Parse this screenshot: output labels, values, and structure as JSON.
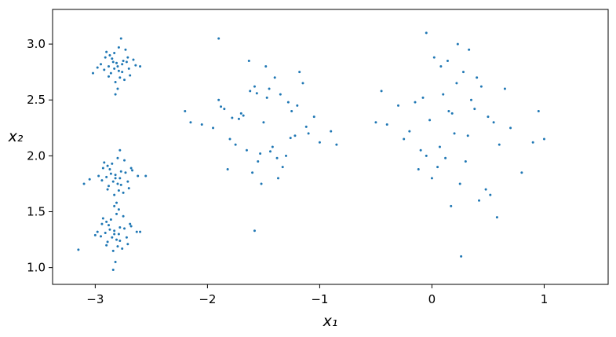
{
  "chart_data": {
    "type": "scatter",
    "color": "#1f77b4",
    "x_label": "x₁",
    "y_label": "x₂",
    "xlim": [
      -3.38,
      1.57
    ],
    "ylim": [
      0.85,
      3.31
    ],
    "xticks": [
      {
        "value": -3,
        "label": "−3"
      },
      {
        "value": -2,
        "label": "−2"
      },
      {
        "value": -1,
        "label": "−1"
      },
      0,
      1
    ],
    "yticks": [
      {
        "value": 1,
        "label": "1.0"
      },
      1.5,
      {
        "value": 2,
        "label": "2.0"
      },
      2.5,
      {
        "value": 3,
        "label": "3.0"
      }
    ],
    "x": [
      -2.8,
      -2.75,
      -2.86,
      -2.91,
      -2.7,
      -2.83,
      -2.78,
      -2.95,
      -2.66,
      -2.82,
      -2.88,
      -2.73,
      -2.79,
      -2.84,
      -2.69,
      -2.92,
      -2.77,
      -2.81,
      -2.87,
      -2.74,
      -2.98,
      -2.64,
      -2.8,
      -2.85,
      -2.76,
      -2.9,
      -2.72,
      -2.83,
      -2.79,
      -2.88,
      -2.71,
      -2.82,
      -2.76,
      -3.02,
      -2.6,
      -2.82,
      -2.77,
      -2.88,
      -2.93,
      -2.71,
      -2.85,
      -2.79,
      -2.97,
      -2.67,
      -2.83,
      -2.9,
      -2.74,
      -2.8,
      -2.86,
      -2.7,
      -2.94,
      -2.78,
      -2.82,
      -2.89,
      -2.75,
      -3.05,
      -2.62,
      -2.81,
      -2.87,
      -2.77,
      -2.92,
      -2.73,
      -2.84,
      -2.8,
      -2.89,
      -2.68,
      -2.83,
      -2.55,
      -3.1,
      -2.78,
      -2.83,
      -2.78,
      -2.89,
      -2.94,
      -2.72,
      -2.86,
      -2.8,
      -2.98,
      -2.68,
      -2.84,
      -2.91,
      -2.75,
      -2.81,
      -2.87,
      -2.71,
      -2.95,
      -2.79,
      -2.83,
      -2.9,
      -2.76,
      -3.0,
      -2.63,
      -2.82,
      -2.88,
      -2.78,
      -2.93,
      -2.74,
      -2.85,
      -2.81,
      -2.9,
      -2.69,
      -2.84,
      -2.6,
      -3.15,
      -2.79,
      -1.5,
      -1.2,
      -1.8,
      -1.35,
      -1.65,
      -1.05,
      -1.95,
      -1.45,
      -1.55,
      -1.25,
      -1.75,
      -1.4,
      -1.6,
      -1.1,
      -1.9,
      -1.3,
      -1.7,
      -1.15,
      -2.05,
      -1.0,
      -1.48,
      -1.52,
      -1.85,
      -1.22,
      -1.62,
      -1.38,
      -1.72,
      -1.28,
      -2.15,
      -0.9,
      -1.42,
      -1.58,
      -1.33,
      -1.68,
      -1.18,
      -1.88,
      -1.47,
      -1.53,
      -2.2,
      -0.85,
      -1.12,
      -1.78,
      -1.37,
      -1.63,
      -1.26,
      -1.82,
      -1.56,
      -1.44,
      -1.9,
      -1.58,
      0.2,
      0.5,
      -0.1,
      0.35,
      0.05,
      0.65,
      -0.25,
      0.15,
      0.25,
      0.55,
      -0.05,
      0.4,
      0.0,
      0.7,
      -0.3,
      0.3,
      0.1,
      0.6,
      -0.4,
      0.8,
      0.18,
      0.22,
      -0.15,
      0.48,
      0.08,
      0.32,
      -0.02,
      0.42,
      -0.45,
      0.9,
      0.28,
      0.12,
      0.38,
      0.02,
      0.52,
      -0.2,
      0.23,
      0.17,
      -0.5,
      1.0,
      0.58,
      -0.08,
      0.33,
      0.07,
      0.44,
      -0.12,
      0.14,
      0.26,
      0.95,
      -0.05
    ],
    "y": [
      2.8,
      2.85,
      2.74,
      2.88,
      2.78,
      2.92,
      2.7,
      2.82,
      2.86,
      2.66,
      2.8,
      2.95,
      2.76,
      2.84,
      2.72,
      2.77,
      3.05,
      2.83,
      2.9,
      2.68,
      2.79,
      2.81,
      2.6,
      2.87,
      2.75,
      2.93,
      2.84,
      2.78,
      2.97,
      2.71,
      2.88,
      2.55,
      2.82,
      2.74,
      2.8,
      1.8,
      1.86,
      1.73,
      1.89,
      1.77,
      1.93,
      1.69,
      1.82,
      1.87,
      1.65,
      1.81,
      1.96,
      1.75,
      1.84,
      1.71,
      1.78,
      2.05,
      1.83,
      1.91,
      1.67,
      1.79,
      1.82,
      1.58,
      1.88,
      1.74,
      1.94,
      1.85,
      1.77,
      1.98,
      1.7,
      1.89,
      1.55,
      1.82,
      1.75,
      1.8,
      1.3,
      1.36,
      1.23,
      1.39,
      1.27,
      1.43,
      1.19,
      1.32,
      1.37,
      1.15,
      1.31,
      1.46,
      1.25,
      1.34,
      1.21,
      1.28,
      1.52,
      1.33,
      1.41,
      1.17,
      1.29,
      1.32,
      1.05,
      1.38,
      1.24,
      1.44,
      1.35,
      1.27,
      1.48,
      1.2,
      1.39,
      0.98,
      1.32,
      1.16,
      1.3,
      2.3,
      2.45,
      2.15,
      2.55,
      2.05,
      2.35,
      2.25,
      2.6,
      1.95,
      2.4,
      2.1,
      2.7,
      1.85,
      2.2,
      2.5,
      2.0,
      2.38,
      2.65,
      2.28,
      2.12,
      2.8,
      1.75,
      2.42,
      2.18,
      2.58,
      1.98,
      2.33,
      2.48,
      2.3,
      2.22,
      2.08,
      2.62,
      1.9,
      2.36,
      2.75,
      2.44,
      2.52,
      2.02,
      2.4,
      2.1,
      2.26,
      2.34,
      1.8,
      2.85,
      2.16,
      1.88,
      2.56,
      2.04,
      3.05,
      1.33,
      2.2,
      2.35,
      2.05,
      2.5,
      1.9,
      2.6,
      2.15,
      2.4,
      1.75,
      2.3,
      2.0,
      2.7,
      1.8,
      2.25,
      2.45,
      1.95,
      2.55,
      2.1,
      2.28,
      1.85,
      2.38,
      2.65,
      2.48,
      1.7,
      2.8,
      2.18,
      2.32,
      1.6,
      2.58,
      2.12,
      2.75,
      1.98,
      2.42,
      2.88,
      1.65,
      2.22,
      3.0,
      1.55,
      2.3,
      2.15,
      1.45,
      2.52,
      2.95,
      2.08,
      2.62,
      1.88,
      2.85,
      1.1,
      2.4,
      3.1
    ]
  }
}
